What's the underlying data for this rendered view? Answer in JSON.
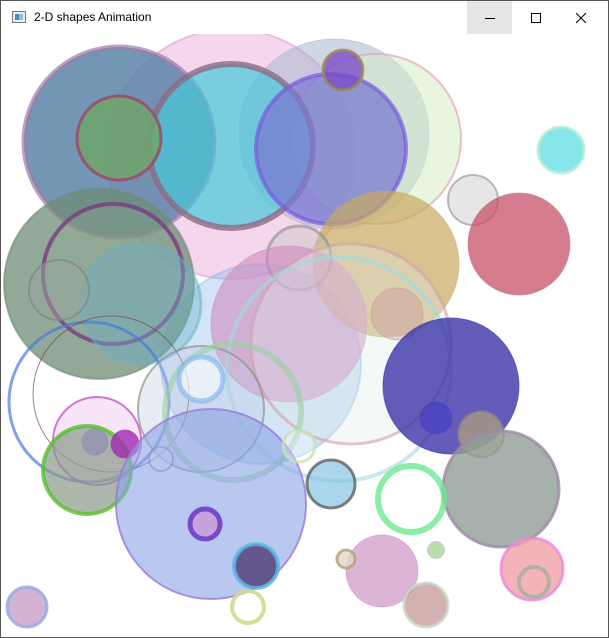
{
  "window": {
    "title": "2-D shapes Animation",
    "icon": "app-window-icon"
  },
  "controls": {
    "minimize": "minimize-icon",
    "maximize": "maximize-icon",
    "close": "close-icon"
  }
}
